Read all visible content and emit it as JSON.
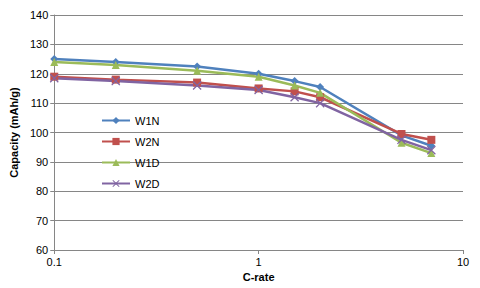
{
  "chart_data": {
    "type": "line",
    "x_label": "C-rate",
    "y_label": "Capacity (mAh/g)",
    "x": [
      0.1,
      0.2,
      0.5,
      1,
      1.5,
      2,
      5,
      7
    ],
    "series": [
      {
        "name": "W1N",
        "color": "#4f81bd",
        "marker": "diamond",
        "values": [
          125,
          124,
          122.5,
          120,
          117.5,
          115.5,
          99,
          95.5
        ]
      },
      {
        "name": "W2N",
        "color": "#c0504d",
        "marker": "square",
        "values": [
          119,
          118,
          117,
          115,
          114,
          112,
          99.5,
          97.5
        ]
      },
      {
        "name": "W1D",
        "color": "#9bbb59",
        "marker": "triangle",
        "values": [
          124,
          123,
          121,
          119,
          116,
          113.5,
          96.5,
          93
        ]
      },
      {
        "name": "W2D",
        "color": "#8064a2",
        "marker": "x",
        "values": [
          118.5,
          117.5,
          116,
          114.5,
          112,
          110,
          97.5,
          94
        ]
      }
    ],
    "xlim": [
      0.1,
      10
    ],
    "xticks": [
      0.1,
      1,
      10
    ],
    "ylim": [
      60,
      140
    ],
    "yticks": [
      60,
      70,
      80,
      90,
      100,
      110,
      120,
      130,
      140
    ],
    "log": "x",
    "grid": true,
    "legend": "left"
  }
}
